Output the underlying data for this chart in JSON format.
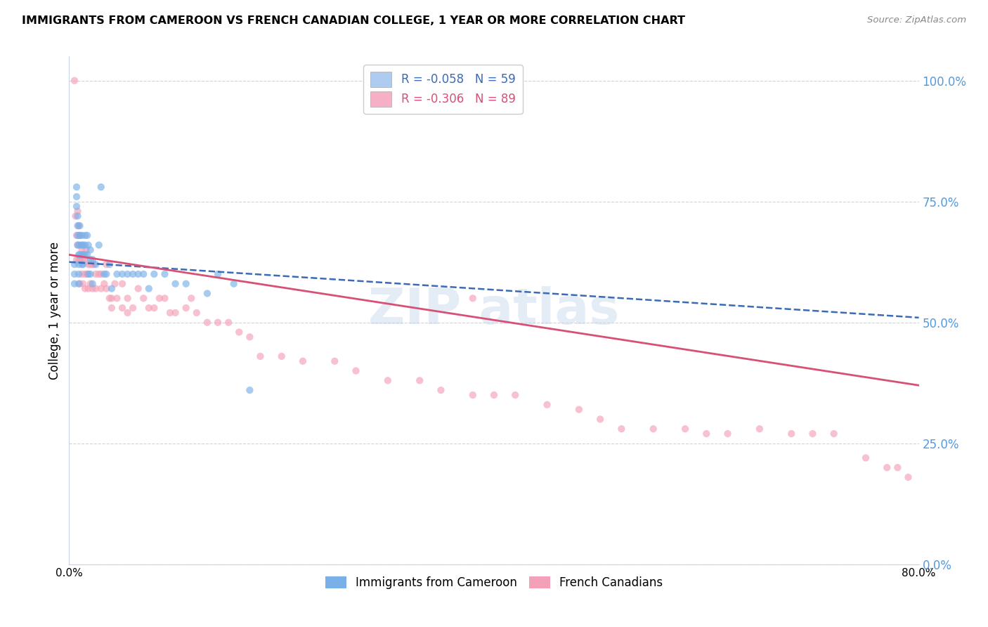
{
  "title": "IMMIGRANTS FROM CAMEROON VS FRENCH CANADIAN COLLEGE, 1 YEAR OR MORE CORRELATION CHART",
  "source": "Source: ZipAtlas.com",
  "ylabel": "College, 1 year or more",
  "ytick_labels": [
    "0.0%",
    "25.0%",
    "50.0%",
    "75.0%",
    "100.0%"
  ],
  "ytick_values": [
    0.0,
    0.25,
    0.5,
    0.75,
    1.0
  ],
  "xmin": 0.0,
  "xmax": 0.8,
  "ymin": 0.0,
  "ymax": 1.05,
  "legend_line1": "R = -0.058   N = 59",
  "legend_line2": "R = -0.306   N = 89",
  "legend_color1": "#aecbf0",
  "legend_color2": "#f5b0c5",
  "blue_scatter_x": [
    0.005,
    0.005,
    0.005,
    0.007,
    0.007,
    0.007,
    0.008,
    0.008,
    0.008,
    0.008,
    0.009,
    0.009,
    0.009,
    0.009,
    0.01,
    0.01,
    0.01,
    0.01,
    0.012,
    0.012,
    0.012,
    0.012,
    0.013,
    0.013,
    0.013,
    0.015,
    0.015,
    0.015,
    0.017,
    0.017,
    0.018,
    0.018,
    0.02,
    0.02,
    0.02,
    0.022,
    0.022,
    0.025,
    0.028,
    0.03,
    0.033,
    0.035,
    0.038,
    0.04,
    0.045,
    0.05,
    0.055,
    0.06,
    0.065,
    0.07,
    0.075,
    0.08,
    0.09,
    0.1,
    0.11,
    0.13,
    0.14,
    0.155,
    0.17
  ],
  "blue_scatter_y": [
    0.62,
    0.6,
    0.58,
    0.78,
    0.76,
    0.74,
    0.72,
    0.7,
    0.68,
    0.66,
    0.64,
    0.62,
    0.6,
    0.58,
    0.7,
    0.68,
    0.66,
    0.64,
    0.68,
    0.66,
    0.64,
    0.62,
    0.66,
    0.64,
    0.62,
    0.68,
    0.66,
    0.64,
    0.68,
    0.64,
    0.66,
    0.6,
    0.65,
    0.63,
    0.6,
    0.63,
    0.58,
    0.62,
    0.66,
    0.78,
    0.6,
    0.6,
    0.62,
    0.57,
    0.6,
    0.6,
    0.6,
    0.6,
    0.6,
    0.6,
    0.57,
    0.6,
    0.6,
    0.58,
    0.58,
    0.56,
    0.6,
    0.58,
    0.36
  ],
  "pink_scatter_x": [
    0.005,
    0.006,
    0.007,
    0.007,
    0.008,
    0.008,
    0.009,
    0.009,
    0.01,
    0.01,
    0.01,
    0.012,
    0.012,
    0.013,
    0.013,
    0.015,
    0.015,
    0.015,
    0.016,
    0.017,
    0.018,
    0.018,
    0.02,
    0.02,
    0.022,
    0.022,
    0.023,
    0.025,
    0.025,
    0.028,
    0.03,
    0.03,
    0.033,
    0.035,
    0.035,
    0.038,
    0.04,
    0.04,
    0.043,
    0.045,
    0.05,
    0.05,
    0.055,
    0.055,
    0.06,
    0.065,
    0.07,
    0.075,
    0.08,
    0.085,
    0.09,
    0.095,
    0.1,
    0.11,
    0.115,
    0.12,
    0.13,
    0.14,
    0.15,
    0.16,
    0.17,
    0.18,
    0.2,
    0.22,
    0.25,
    0.27,
    0.3,
    0.33,
    0.35,
    0.38,
    0.4,
    0.42,
    0.45,
    0.48,
    0.5,
    0.52,
    0.55,
    0.58,
    0.6,
    0.62,
    0.65,
    0.68,
    0.7,
    0.72,
    0.75,
    0.77,
    0.78,
    0.79,
    0.38
  ],
  "pink_scatter_y": [
    1.0,
    0.72,
    0.68,
    0.63,
    0.73,
    0.66,
    0.7,
    0.63,
    0.68,
    0.63,
    0.58,
    0.65,
    0.6,
    0.63,
    0.58,
    0.63,
    0.6,
    0.57,
    0.65,
    0.6,
    0.62,
    0.57,
    0.62,
    0.58,
    0.62,
    0.57,
    0.62,
    0.6,
    0.57,
    0.6,
    0.6,
    0.57,
    0.58,
    0.62,
    0.57,
    0.55,
    0.55,
    0.53,
    0.58,
    0.55,
    0.58,
    0.53,
    0.55,
    0.52,
    0.53,
    0.57,
    0.55,
    0.53,
    0.53,
    0.55,
    0.55,
    0.52,
    0.52,
    0.53,
    0.55,
    0.52,
    0.5,
    0.5,
    0.5,
    0.48,
    0.47,
    0.43,
    0.43,
    0.42,
    0.42,
    0.4,
    0.38,
    0.38,
    0.36,
    0.35,
    0.35,
    0.35,
    0.33,
    0.32,
    0.3,
    0.28,
    0.28,
    0.28,
    0.27,
    0.27,
    0.28,
    0.27,
    0.27,
    0.27,
    0.22,
    0.2,
    0.2,
    0.18,
    0.55
  ],
  "blue_line_x0": 0.0,
  "blue_line_x1": 0.8,
  "blue_line_y0": 0.625,
  "blue_line_y1": 0.51,
  "pink_line_x0": 0.0,
  "pink_line_x1": 0.8,
  "pink_line_y0": 0.64,
  "pink_line_y1": 0.37,
  "grid_color": "#c8d4e8",
  "background_color": "#ffffff",
  "scatter_alpha": 0.65,
  "scatter_size": 55,
  "blue_color": "#7ab0e8",
  "pink_color": "#f4a0b8",
  "blue_line_color": "#3a6ab8",
  "pink_line_color": "#d85075",
  "right_axis_color": "#5599dd",
  "watermark_color": "#c5d5ec"
}
